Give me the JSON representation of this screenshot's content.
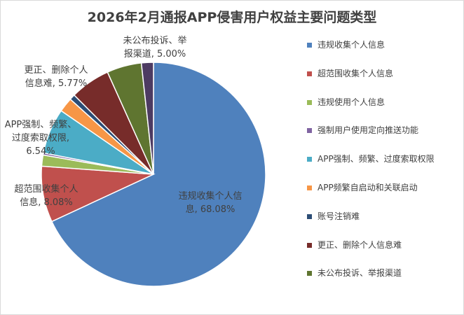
{
  "chart_data": {
    "type": "pie",
    "title": "2026年2月通报APP侵害用户权益主要问题类型",
    "legend_position": "right",
    "series": [
      {
        "name": "违规收集个人信息",
        "value": 68.08,
        "color": "#4f81bd",
        "label": [
          "违规收集个人信",
          "息, 68.08%"
        ]
      },
      {
        "name": "超范围收集个人信息",
        "value": 8.08,
        "color": "#c0504d",
        "label": [
          "超范围收集个人",
          "信息, 8.08%"
        ]
      },
      {
        "name": "违规使用个人信息",
        "value": 1.6,
        "color": "#9bbb59",
        "label": []
      },
      {
        "name": "强制用户使用定向推送功能",
        "value": 0.3,
        "color": "#8064a2",
        "label": []
      },
      {
        "name": "APP强制、频繁、过度索取权限",
        "value": 6.54,
        "color": "#4bacc6",
        "label": [
          "APP强制、频繁、",
          "过度索取权限,",
          "6.54%"
        ]
      },
      {
        "name": "APP频繁自启动和关联启动",
        "value": 2.1,
        "color": "#f79646",
        "label": []
      },
      {
        "name": "账号注销难",
        "value": 0.8,
        "color": "#2c4d75",
        "label": []
      },
      {
        "name": "更正、删除个人信息难",
        "value": 5.77,
        "color": "#772c2a",
        "label": [
          "更正、删除个人",
          "信息难, 5.77%"
        ]
      },
      {
        "name": "未公布投诉、举报渠道",
        "value": 5.0,
        "color": "#5f7530",
        "label": [
          "未公布投诉、举",
          "报渠道, 5.00%"
        ]
      },
      {
        "name": "",
        "value": 1.73,
        "color": "#4d3b62",
        "label": []
      }
    ]
  }
}
